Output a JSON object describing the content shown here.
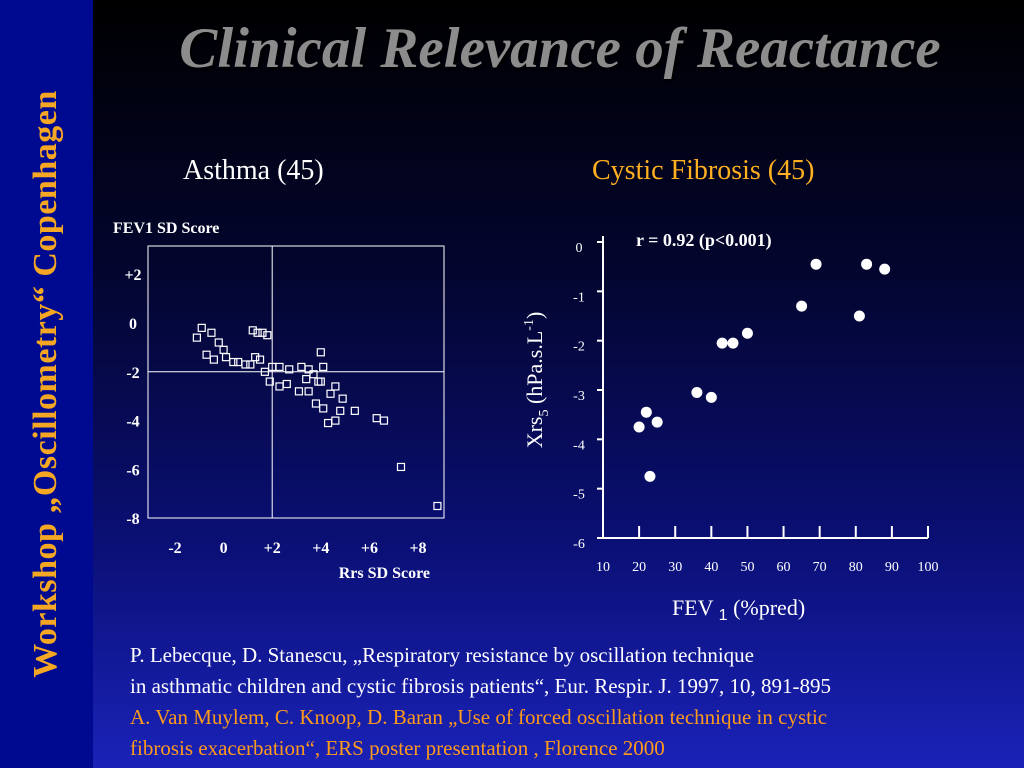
{
  "sidebar": {
    "text": "Workshop „Oscillometry“  Copenhagen"
  },
  "title": "Clinical Relevance of Reactance",
  "asthma": {
    "subtitle": "Asthma (45)",
    "chart_data": {
      "type": "scatter",
      "ylabel": "FEV1 SD Score",
      "xlabel": "Rrs SD Score",
      "x_ticks": [
        "-2",
        "0",
        "+2",
        "+4",
        "+6",
        "+8"
      ],
      "y_ticks": [
        "+2",
        "0",
        "-2",
        "-4",
        "-6",
        "-8"
      ],
      "xlim": [
        -3.5,
        9.5
      ],
      "ylim": [
        -8,
        3
      ],
      "reference_lines": {
        "x": 2,
        "y": -2
      },
      "points": [
        [
          -1.1,
          -0.6
        ],
        [
          -0.9,
          -0.2
        ],
        [
          -0.5,
          -0.4
        ],
        [
          -0.2,
          -0.8
        ],
        [
          -0.4,
          -1.5
        ],
        [
          0.1,
          -1.4
        ],
        [
          0.4,
          -1.6
        ],
        [
          0.6,
          -1.6
        ],
        [
          0.9,
          -1.7
        ],
        [
          1.1,
          -1.7
        ],
        [
          1.2,
          -0.3
        ],
        [
          1.4,
          -0.4
        ],
        [
          1.6,
          -0.4
        ],
        [
          1.8,
          -0.5
        ],
        [
          -0.7,
          -1.3
        ],
        [
          0.0,
          -1.1
        ],
        [
          1.3,
          -1.4
        ],
        [
          1.5,
          -1.5
        ],
        [
          1.7,
          -2.0
        ],
        [
          2.0,
          -1.8
        ],
        [
          2.3,
          -1.8
        ],
        [
          2.6,
          -2.5
        ],
        [
          1.9,
          -2.4
        ],
        [
          2.3,
          -2.6
        ],
        [
          2.7,
          -1.9
        ],
        [
          3.2,
          -1.8
        ],
        [
          3.5,
          -1.9
        ],
        [
          3.7,
          -2.1
        ],
        [
          3.4,
          -2.3
        ],
        [
          4.0,
          -1.2
        ],
        [
          4.1,
          -1.8
        ],
        [
          4.0,
          -2.4
        ],
        [
          3.9,
          -2.4
        ],
        [
          3.5,
          -2.8
        ],
        [
          3.1,
          -2.8
        ],
        [
          4.6,
          -2.6
        ],
        [
          4.4,
          -2.9
        ],
        [
          3.8,
          -3.3
        ],
        [
          4.1,
          -3.5
        ],
        [
          4.9,
          -3.1
        ],
        [
          4.8,
          -3.6
        ],
        [
          4.6,
          -4.0
        ],
        [
          4.3,
          -4.1
        ],
        [
          5.4,
          -3.6
        ],
        [
          6.3,
          -3.9
        ],
        [
          6.6,
          -4.0
        ],
        [
          7.3,
          -5.9
        ],
        [
          8.8,
          -7.5
        ]
      ]
    }
  },
  "cf": {
    "subtitle": "Cystic Fibrosis (45)",
    "chart_data": {
      "type": "scatter",
      "annotation": "r = 0.92 (p<0.001)",
      "ylabel": "Xrs",
      "ylabel_sub": "5",
      "ylabel_unit_pre": " (hPa.s.L",
      "ylabel_sup": "-1",
      "ylabel_unit_post": ")",
      "xlabel": "FEV",
      "xlabel_sub": "1",
      "xlabel_unit": " (%pred)",
      "x_ticks": [
        "10",
        "20",
        "30",
        "40",
        "50",
        "60",
        "70",
        "80",
        "90",
        "100"
      ],
      "y_ticks": [
        "0",
        "-1",
        "-2",
        "-3",
        "-4",
        "-5",
        "-6"
      ],
      "xlim": [
        10,
        100
      ],
      "ylim": [
        -6,
        0
      ],
      "points": [
        [
          20,
          -3.75
        ],
        [
          22,
          -3.45
        ],
        [
          25,
          -3.65
        ],
        [
          23,
          -4.75
        ],
        [
          36,
          -3.05
        ],
        [
          40,
          -3.15
        ],
        [
          43,
          -2.05
        ],
        [
          46,
          -2.05
        ],
        [
          50,
          -1.85
        ],
        [
          65,
          -1.3
        ],
        [
          69,
          -0.45
        ],
        [
          81,
          -1.5
        ],
        [
          83,
          -0.45
        ],
        [
          88,
          -0.55
        ]
      ]
    }
  },
  "references": {
    "line1": "P. Lebecque, D. Stanescu, „Respiratory resistance by oscillation technique",
    "line2": "in asthmatic children and cystic fibrosis patients“, Eur. Respir. J. 1997, 10, 891-895",
    "line3": "A. Van Muylem, C. Knoop, D. Baran „Use of forced oscillation technique in cystic",
    "line4": "fibrosis exacerbation“, ERS poster presentation , Florence 2000"
  }
}
